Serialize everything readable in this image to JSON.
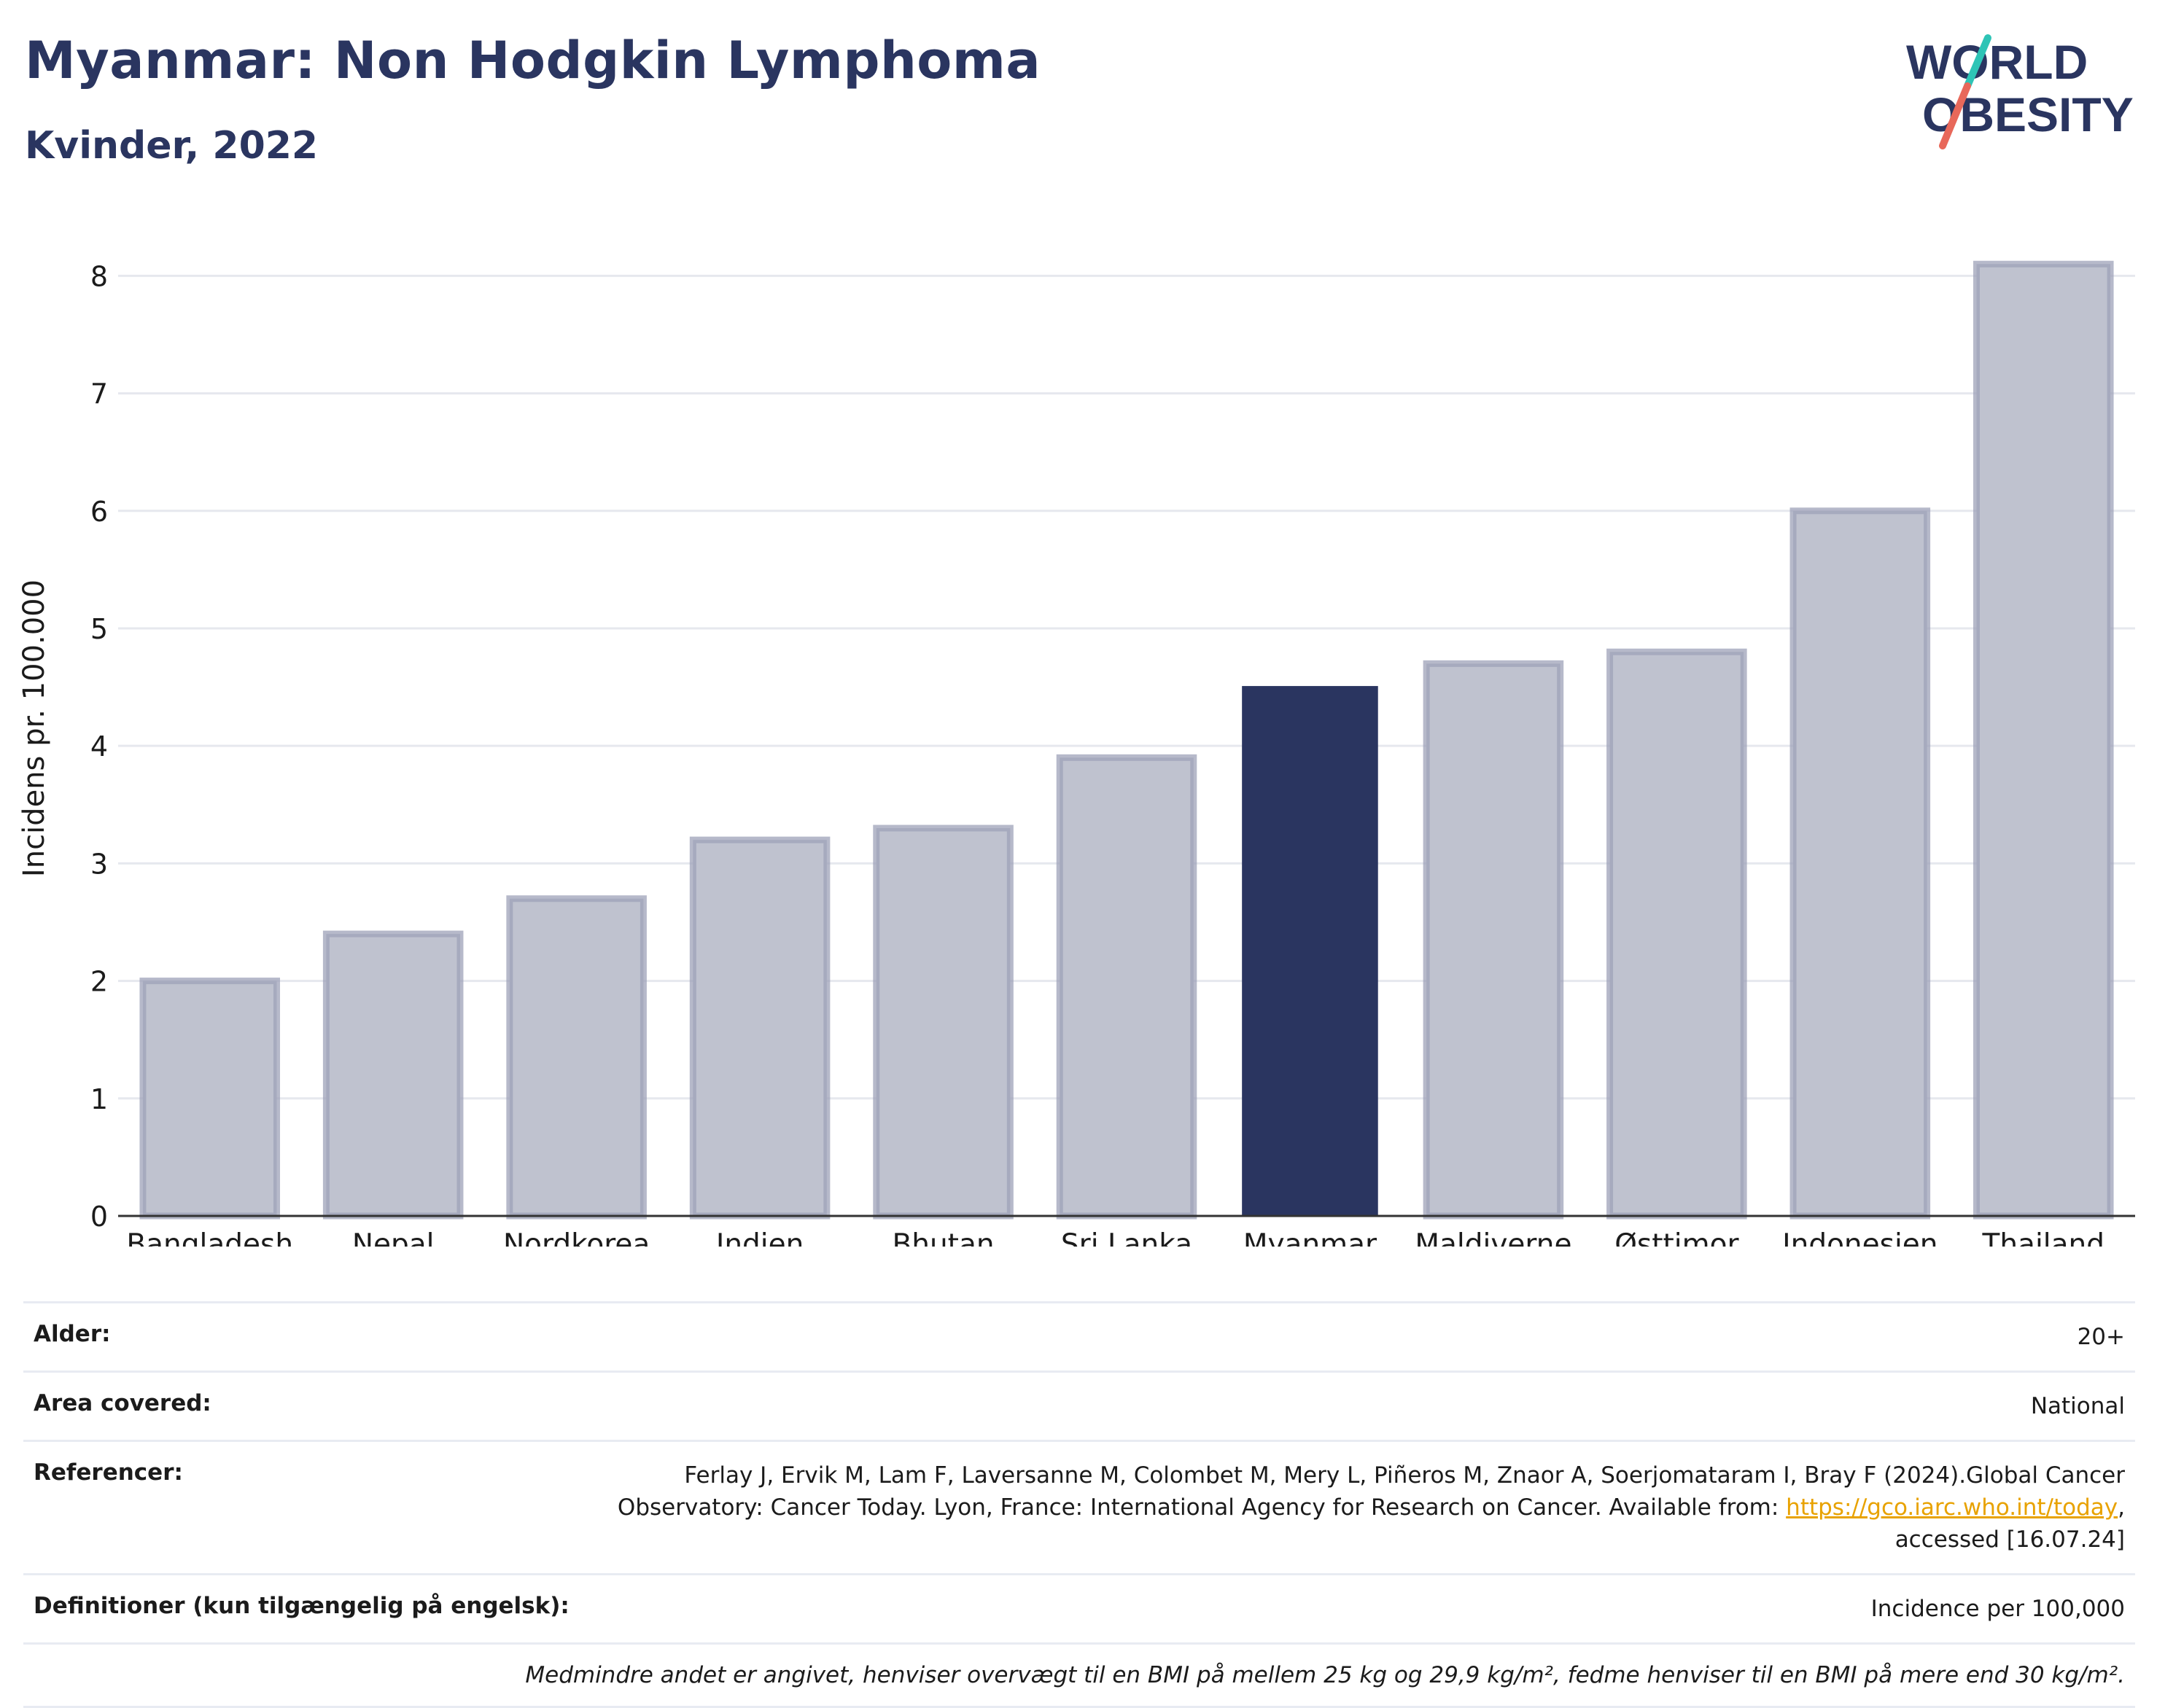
{
  "header": {
    "title": "Myanmar: Non Hodgkin Lymphoma",
    "subtitle": "Kvinder, 2022"
  },
  "logo": {
    "line1": "WORLD",
    "line2": "OBESITY",
    "accent_colors": [
      "#2ec4b6",
      "#e8685a"
    ]
  },
  "colors": {
    "highlight": "#2a3560",
    "bar_fill": "#bfc2cf",
    "bar_stroke": "#9da2b8",
    "text": "#2a3560"
  },
  "chart_data": {
    "type": "bar",
    "categories": [
      "Bangladesh",
      "Nepal",
      "Nordkorea",
      "Indien",
      "Bhutan",
      "Sri Lanka",
      "Myanmar",
      "Maldiverne",
      "Østtimor",
      "Indonesien",
      "Thailand"
    ],
    "values": [
      2.0,
      2.4,
      2.7,
      3.2,
      3.3,
      3.9,
      4.5,
      4.7,
      4.8,
      6.0,
      8.1
    ],
    "highlight": "Myanmar",
    "ylabel": "Incidens pr. 100.000",
    "xlabel": "",
    "ylim": [
      0,
      8.3
    ],
    "yticks": [
      0,
      1,
      2,
      3,
      4,
      5,
      6,
      7,
      8
    ],
    "grid": true
  },
  "info": {
    "age_label": "Alder:",
    "age_value": "20+",
    "area_label": "Area covered:",
    "area_value": "National",
    "ref_label": "Referencer:",
    "ref_text_1": "Ferlay J, Ervik M, Lam F, Laversanne M, Colombet M, Mery L, Piñeros M, Znaor A, Soerjomataram I, Bray F (2024).Global Cancer Observatory: Cancer Today. Lyon, France: International Agency for Research on Cancer. Available from: ",
    "ref_link": "https://gco.iarc.who.int/today",
    "ref_text_2": ", accessed [16.07.24]",
    "def_label": "Definitioner (kun tilgængelig på engelsk):",
    "def_value": "Incidence per 100,000",
    "note": "Medmindre andet er angivet, henviser overvægt til en BMI på mellem 25 kg og 29,9 kg/m², fedme henviser til en BMI på mere end 30 kg/m²."
  }
}
